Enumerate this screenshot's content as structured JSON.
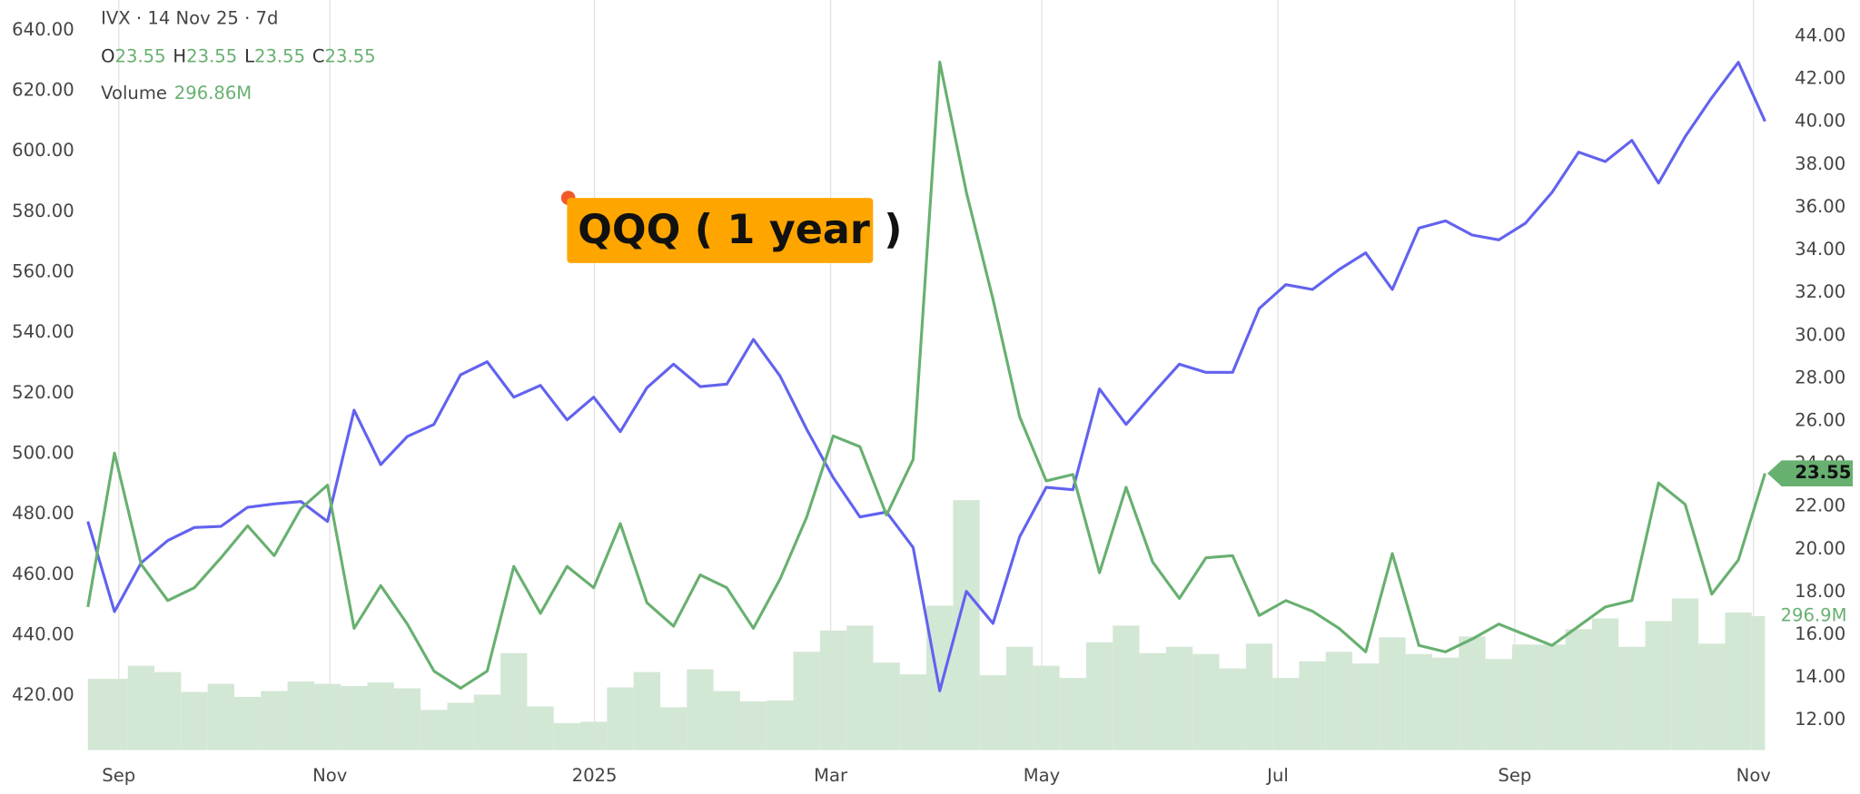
{
  "chart_data": {
    "type": "line",
    "title": "IVX · 14 Nov 25 · 7d",
    "ohlc": [
      {
        "label": "O",
        "value": 23.55
      },
      {
        "label": "H",
        "value": 23.55
      },
      {
        "label": "L",
        "value": 23.55
      },
      {
        "label": "C",
        "value": 23.55
      }
    ],
    "annotation": "QQQ ( 1 year )",
    "xlim": [
      0,
      63
    ],
    "xticks": [
      {
        "value": 1.16,
        "label": "Sep"
      },
      {
        "value": 9.09,
        "label": "Nov"
      },
      {
        "value": 19.03,
        "label": "2025"
      },
      {
        "value": 27.9,
        "label": "Mar"
      },
      {
        "value": 35.83,
        "label": "May"
      },
      {
        "value": 44.7,
        "label": "Jul"
      },
      {
        "value": 53.6,
        "label": "Sep"
      },
      {
        "value": 62.57,
        "label": "Nov"
      }
    ],
    "ylim": [
      402,
      650
    ],
    "yticks": [
      {
        "value": 420,
        "label": "420.00"
      },
      {
        "value": 440,
        "label": "440.00"
      },
      {
        "value": 460,
        "label": "460.00"
      },
      {
        "value": 480,
        "label": "480.00"
      },
      {
        "value": 500,
        "label": "500.00"
      },
      {
        "value": 520,
        "label": "520.00"
      },
      {
        "value": 540,
        "label": "540.00"
      },
      {
        "value": 560,
        "label": "560.00"
      },
      {
        "value": 580,
        "label": "580.00"
      },
      {
        "value": 600,
        "label": "600.00"
      },
      {
        "value": 620,
        "label": "620.00"
      },
      {
        "value": 640,
        "label": "640.00"
      }
    ],
    "y2lim": [
      10.6,
      45.7
    ],
    "y2ticks": [
      {
        "value": 12,
        "label": "12.00"
      },
      {
        "value": 14,
        "label": "14.00"
      },
      {
        "value": 16,
        "label": "16.00"
      },
      {
        "value": 18,
        "label": "18.00"
      },
      {
        "value": 20,
        "label": "20.00"
      },
      {
        "value": 22,
        "label": "22.00"
      },
      {
        "value": 24,
        "label": "24.00"
      },
      {
        "value": 26,
        "label": "26.00"
      },
      {
        "value": 28,
        "label": "28.00"
      },
      {
        "value": 30,
        "label": "30.00"
      },
      {
        "value": 32,
        "label": "32.00"
      },
      {
        "value": 34,
        "label": "34.00"
      },
      {
        "value": 36,
        "label": "36.00"
      },
      {
        "value": 38,
        "label": "38.00"
      },
      {
        "value": 40,
        "label": "40.00"
      },
      {
        "value": 42,
        "label": "42.00"
      },
      {
        "value": 44,
        "label": "44.00"
      }
    ],
    "grid": true,
    "series": [
      {
        "color": "#6262ef",
        "axis": "y",
        "values": [
          477.6,
          447.8,
          463.9,
          471.3,
          475.6,
          476.0,
          482.3,
          483.4,
          484.2,
          477.6,
          514.4,
          496.4,
          505.7,
          509.7,
          526.1,
          530.4,
          518.7,
          522.6,
          511.2,
          518.7,
          507.3,
          521.8,
          529.6,
          522.2,
          523.0,
          537.8,
          525.7,
          508.1,
          492.1,
          479.1,
          480.7,
          469.0,
          421.6,
          454.5,
          443.9,
          472.5,
          488.9,
          488.1,
          521.4,
          509.7,
          519.8,
          529.6,
          526.9,
          526.9,
          548.0,
          555.9,
          554.3,
          560.9,
          566.4,
          554.3,
          574.6,
          577.0,
          572.3,
          570.7,
          576.2,
          586.4,
          599.7,
          596.6,
          603.6,
          589.5,
          604.8,
          617.7,
          629.4,
          609.9
        ]
      },
      {
        "color": "#68b070",
        "axis": "y2",
        "values": [
          17.3,
          24.5,
          19.3,
          17.6,
          18.2,
          19.6,
          21.1,
          19.7,
          21.9,
          23.0,
          16.3,
          18.3,
          16.5,
          14.3,
          13.5,
          14.3,
          19.2,
          17.0,
          19.2,
          18.2,
          21.2,
          17.5,
          16.4,
          18.8,
          18.2,
          16.3,
          18.6,
          21.5,
          25.3,
          24.8,
          21.6,
          24.2,
          42.8,
          36.7,
          31.7,
          26.2,
          23.2,
          23.5,
          18.9,
          22.9,
          19.4,
          17.7,
          19.6,
          19.7,
          16.9,
          17.6,
          17.1,
          16.3,
          15.2,
          19.8,
          15.5,
          15.2,
          15.8,
          16.5,
          16.0,
          15.5,
          16.4,
          17.3,
          17.6,
          23.1,
          22.1,
          17.9,
          19.5,
          23.55
        ]
      }
    ],
    "volume": {
      "name": "Volume",
      "color": "#d3e7d5",
      "header_label": "296.86M",
      "axis_label": "296.9M",
      "values": [
        158,
        158,
        187,
        173,
        129,
        147,
        118,
        131,
        152,
        147,
        142,
        150,
        137,
        89,
        105,
        123,
        215,
        97,
        60,
        63,
        139,
        173,
        95,
        179,
        131,
        108,
        110,
        218,
        265,
        276,
        194,
        168,
        320,
        554,
        166,
        229,
        187,
        160,
        239,
        276,
        215,
        229,
        213,
        181,
        236,
        160,
        197,
        218,
        192,
        250,
        213,
        205,
        252,
        202,
        234,
        234,
        268,
        292,
        229,
        286,
        336,
        236,
        305,
        296.86
      ]
    }
  }
}
